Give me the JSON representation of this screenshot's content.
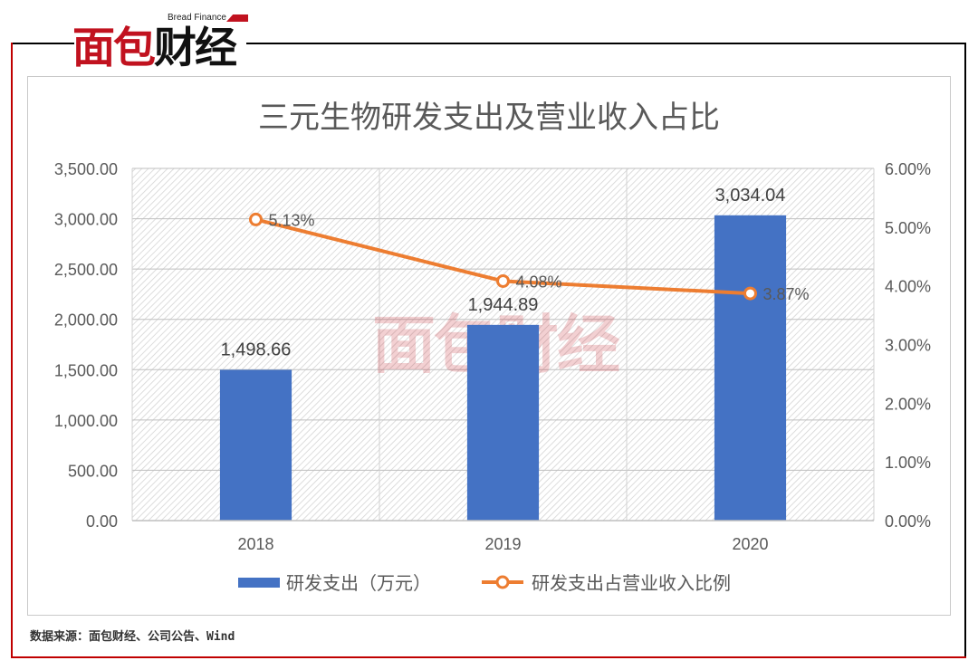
{
  "brand": {
    "name_cn": "面包财经",
    "name_en": "Bread Finance"
  },
  "colors": {
    "bar": "#4472c4",
    "line": "#ed7d31",
    "brand_red": "#c1121f"
  },
  "source_note": "数据来源：面包财经、公司公告、Wind",
  "chart_data": {
    "type": "bar",
    "title": "三元生物研发支出及营业收入占比",
    "categories": [
      "2018",
      "2019",
      "2020"
    ],
    "y_left": {
      "lim": [
        0,
        3500
      ],
      "ticks": [
        "0.00",
        "500.00",
        "1,000.00",
        "1,500.00",
        "2,000.00",
        "2,500.00",
        "3,000.00",
        "3,500.00"
      ]
    },
    "y_right": {
      "lim": [
        0,
        6
      ],
      "ticks": [
        "0.00%",
        "1.00%",
        "2.00%",
        "3.00%",
        "4.00%",
        "5.00%",
        "6.00%"
      ]
    },
    "series": [
      {
        "name": "研发支出（万元）",
        "type": "bar",
        "axis": "left",
        "values": [
          1498.66,
          1944.89,
          3034.04
        ],
        "labels": [
          "1,498.66",
          "1,944.89",
          "3,034.04"
        ]
      },
      {
        "name": "研发支出占营业收入比例",
        "type": "line",
        "axis": "right",
        "values": [
          5.13,
          4.08,
          3.87
        ],
        "labels": [
          "5.13%",
          "4.08%",
          "3.87%"
        ]
      }
    ],
    "grid": true,
    "legend": "bottom"
  }
}
